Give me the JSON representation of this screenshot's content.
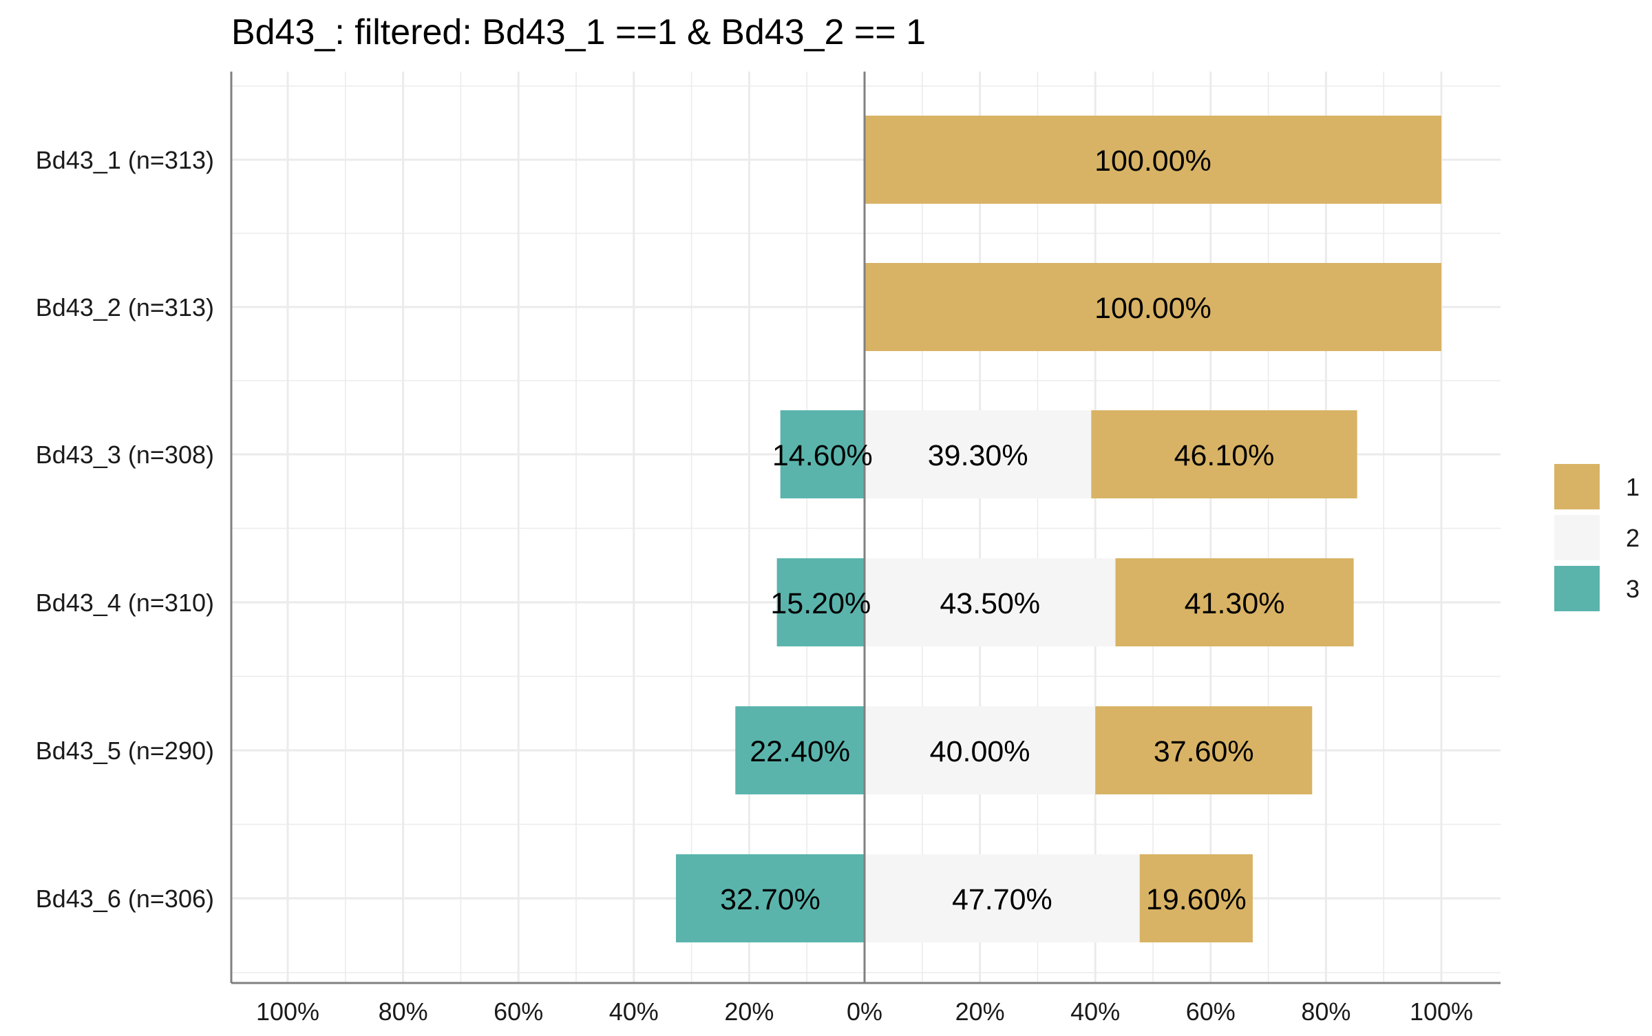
{
  "chart_data": {
    "type": "bar",
    "orientation": "horizontal",
    "stacking": "diverging",
    "title": "Bd43_: filtered: Bd43_1 ==1 & Bd43_2 == 1",
    "xlabel": "",
    "ylabel": "",
    "xlim": [
      -100,
      100
    ],
    "x_ticks": [
      -100,
      -80,
      -60,
      -40,
      -20,
      0,
      20,
      40,
      60,
      80,
      100
    ],
    "x_tick_labels": [
      "100%",
      "80%",
      "60%",
      "40%",
      "20%",
      "0%",
      "20%",
      "40%",
      "60%",
      "80%",
      "100%"
    ],
    "grid": true,
    "legend_position": "right",
    "categories": [
      "Bd43_1 (n=313)",
      "Bd43_2 (n=313)",
      "Bd43_3 (n=308)",
      "Bd43_4 (n=310)",
      "Bd43_5 (n=290)",
      "Bd43_6 (n=306)"
    ],
    "series": [
      {
        "name": "1",
        "color": "#D8B365",
        "values": [
          100.0,
          100.0,
          46.1,
          41.3,
          37.6,
          19.6
        ],
        "labels": [
          "100.00%",
          "100.00%",
          "46.10%",
          "41.30%",
          "37.60%",
          "19.60%"
        ]
      },
      {
        "name": "2",
        "color": "#F5F5F5",
        "values": [
          0,
          0,
          39.3,
          43.5,
          40.0,
          47.7
        ],
        "labels": [
          "",
          "",
          "39.30%",
          "43.50%",
          "40.00%",
          "47.70%"
        ]
      },
      {
        "name": "3",
        "color": "#5AB4AC",
        "values": [
          0,
          0,
          14.6,
          15.2,
          22.4,
          32.7
        ],
        "labels": [
          "",
          "",
          "14.60%",
          "15.20%",
          "22.40%",
          "32.70%"
        ]
      }
    ],
    "legend": [
      {
        "label": "1",
        "color": "#D8B365"
      },
      {
        "label": "2",
        "color": "#F5F5F5"
      },
      {
        "label": "3",
        "color": "#5AB4AC"
      }
    ]
  }
}
